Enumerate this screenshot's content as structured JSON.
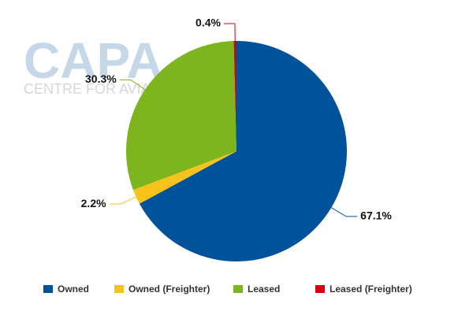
{
  "watermark": {
    "title": "CAPA",
    "subtitle": "CENTRE FOR AVIATION"
  },
  "chart_data": {
    "type": "pie",
    "categories": [
      "Owned",
      "Owned (Freighter)",
      "Leased",
      "Leased (Freighter)"
    ],
    "values": [
      67.1,
      2.2,
      30.3,
      0.4
    ],
    "value_labels": [
      "67.1%",
      "2.2%",
      "30.3%",
      "0.4%"
    ],
    "colors": [
      "#00529b",
      "#f7c31a",
      "#7db51e",
      "#d7000f"
    ],
    "legend": "bottom"
  }
}
